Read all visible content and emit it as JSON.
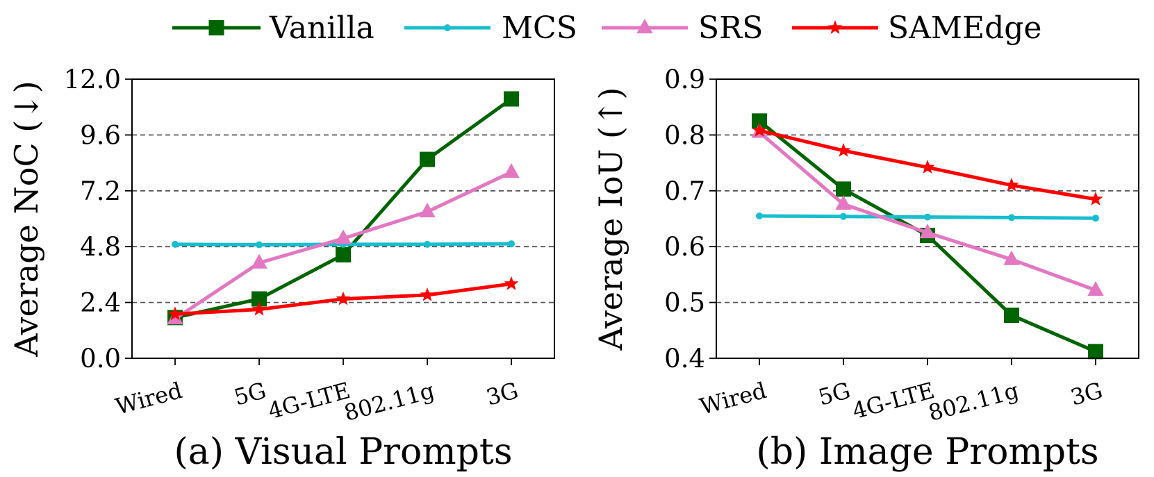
{
  "legend": {
    "items": [
      {
        "name": "Vanilla",
        "color": "#006400",
        "marker": "square"
      },
      {
        "name": "MCS",
        "color": "#17becf",
        "marker": "circle"
      },
      {
        "name": "SRS",
        "color": "#e377c2",
        "marker": "triangle"
      },
      {
        "name": "SAMEdge",
        "color": "#ff0000",
        "marker": "star"
      }
    ]
  },
  "chart_data": [
    {
      "type": "line",
      "title": "(a) Visual Prompts",
      "ylabel": "Average NoC (↓)",
      "xlabel": "",
      "categories": [
        "Wired",
        "5G",
        "4G-LTE",
        "802.11g",
        "3G"
      ],
      "ylim": [
        0.0,
        12.0
      ],
      "yticks": [
        "0.0",
        "2.4",
        "4.8",
        "7.2",
        "9.6",
        "12.0"
      ],
      "grid": "horizontal-dashed",
      "series": [
        {
          "name": "Vanilla",
          "values": [
            1.75,
            2.55,
            4.45,
            8.55,
            11.15
          ]
        },
        {
          "name": "MCS",
          "values": [
            4.9,
            4.88,
            4.9,
            4.9,
            4.92
          ]
        },
        {
          "name": "SRS",
          "values": [
            1.7,
            4.1,
            5.15,
            6.3,
            8.0
          ]
        },
        {
          "name": "SAMEdge",
          "values": [
            1.9,
            2.1,
            2.55,
            2.72,
            3.2
          ]
        }
      ]
    },
    {
      "type": "line",
      "title": "(b) Image Prompts",
      "ylabel": "Average IoU (↑)",
      "xlabel": "",
      "categories": [
        "Wired",
        "5G",
        "4G-LTE",
        "802.11g",
        "3G"
      ],
      "ylim": [
        0.4,
        0.9
      ],
      "yticks": [
        "0.4",
        "0.5",
        "0.6",
        "0.7",
        "0.8",
        "0.9"
      ],
      "grid": "horizontal-dashed",
      "series": [
        {
          "name": "Vanilla",
          "values": [
            0.825,
            0.703,
            0.62,
            0.477,
            0.412
          ]
        },
        {
          "name": "MCS",
          "values": [
            0.655,
            0.654,
            0.653,
            0.652,
            0.651
          ]
        },
        {
          "name": "SRS",
          "values": [
            0.805,
            0.676,
            0.625,
            0.577,
            0.522
          ]
        },
        {
          "name": "SAMEdge",
          "values": [
            0.808,
            0.772,
            0.742,
            0.71,
            0.685
          ]
        }
      ]
    }
  ]
}
